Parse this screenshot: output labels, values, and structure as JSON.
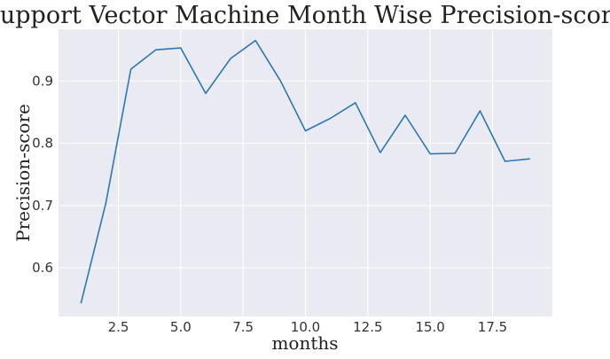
{
  "chart_data": {
    "type": "line",
    "title": "Support Vector Machine Month Wise Precision-score",
    "xlabel": "months",
    "ylabel": "Precision-score",
    "xlim": [
      0.1,
      19.9
    ],
    "ylim": [
      0.522,
      0.983
    ],
    "xticks": [
      2.5,
      5.0,
      7.5,
      10.0,
      12.5,
      15.0,
      17.5
    ],
    "xtick_labels": [
      "2.5",
      "5.0",
      "7.5",
      "10.0",
      "12.5",
      "15.0",
      "17.5"
    ],
    "yticks": [
      0.6,
      0.7,
      0.8,
      0.9
    ],
    "ytick_labels": [
      "0.6",
      "0.7",
      "0.8",
      "0.9"
    ],
    "grid": true,
    "colors": {
      "line": "#2a78b5",
      "plot_background": "#eaeaf2",
      "grid": "#ffffff"
    },
    "series": [
      {
        "x": [
          1,
          2,
          3,
          4,
          5,
          6,
          7,
          8,
          9,
          10,
          11,
          12,
          13,
          14,
          15,
          16,
          17,
          18,
          19
        ],
        "values": [
          0.543,
          0.704,
          0.919,
          0.95,
          0.953,
          0.88,
          0.936,
          0.965,
          0.9,
          0.82,
          0.84,
          0.865,
          0.785,
          0.845,
          0.783,
          0.784,
          0.852,
          0.771,
          0.775
        ]
      }
    ]
  }
}
